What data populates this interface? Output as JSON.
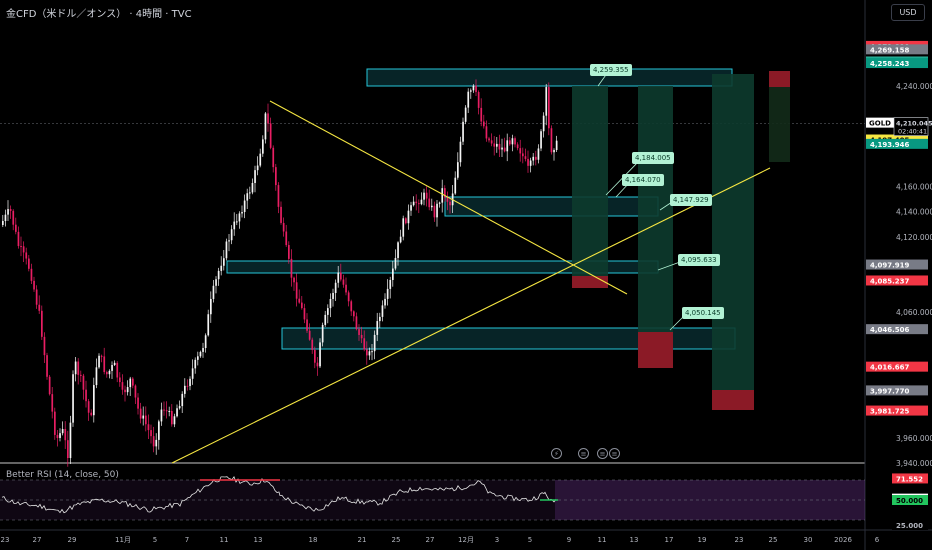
{
  "header": {
    "title": "金CFD（米ドル／オンス） · 4時間 · TVC",
    "currency_button": "USD"
  },
  "rsi": {
    "title": "Better RSI (14, close, 50)",
    "labels": [
      {
        "value": "71.552",
        "color": "#f23645",
        "text_color": "#ffffff",
        "y": 71.552
      },
      {
        "value": "51.351",
        "color": "#ffffff",
        "text_color": "#000000",
        "y": 51.351
      },
      {
        "value": "50.000",
        "color": "#22c55e",
        "text_color": "#000000",
        "y": 50.0
      },
      {
        "value": "25.000",
        "color": "#000000",
        "text_color": "#b2b5be",
        "y": 25.0
      }
    ],
    "levels": [
      70,
      50,
      30
    ]
  },
  "price_axis": {
    "ticks": [
      "4,240.000",
      "4,160.000",
      "4,140.000",
      "4,120.000",
      "4,060.000",
      "3,960.000",
      "3,940.000"
    ],
    "symbol_tag": "GOLD",
    "current_price": "4,210.045",
    "countdown": "02:40:41",
    "tags": [
      {
        "value": "4,271.890",
        "y": 4271.89,
        "color": "#f23645",
        "text_color": "#ffffff"
      },
      {
        "value": "4,269.158",
        "y": 4269.158,
        "color": "#787b86",
        "text_color": "#ffffff"
      },
      {
        "value": "4,259.531",
        "y": 4259.531,
        "color": "#787b86",
        "text_color": "#ffffff"
      },
      {
        "value": "4,259.469",
        "y": 4259.469,
        "color": "#22ab94",
        "text_color": "#ffffff"
      },
      {
        "value": "4,258.243",
        "y": 4258.243,
        "color": "#089981",
        "text_color": "#ffffff"
      },
      {
        "value": "4,197.405",
        "y": 4197.405,
        "color": "#f5e642",
        "text_color": "#000000"
      },
      {
        "value": "4,193.946",
        "y": 4193.946,
        "color": "#089981",
        "text_color": "#ffffff"
      },
      {
        "value": "4,097.919",
        "y": 4097.919,
        "color": "#787b86",
        "text_color": "#ffffff"
      },
      {
        "value": "4,085.237",
        "y": 4085.237,
        "color": "#f23645",
        "text_color": "#ffffff"
      },
      {
        "value": "4,046.506",
        "y": 4046.506,
        "color": "#787b86",
        "text_color": "#ffffff"
      },
      {
        "value": "4,016.667",
        "y": 4016.667,
        "color": "#f23645",
        "text_color": "#ffffff"
      },
      {
        "value": "3,997.770",
        "y": 3997.77,
        "color": "#787b86",
        "text_color": "#ffffff"
      },
      {
        "value": "3,981.725",
        "y": 3981.725,
        "color": "#f23645",
        "text_color": "#ffffff"
      }
    ]
  },
  "time_axis": {
    "labels": [
      "23",
      "27",
      "29",
      "11月",
      "5",
      "7",
      "11",
      "13",
      "18",
      "21",
      "25",
      "27",
      "12月",
      "3",
      "5",
      "9",
      "11",
      "13",
      "17",
      "19",
      "23",
      "25",
      "30",
      "2026",
      "6"
    ]
  },
  "annotations": [
    {
      "label": "4,259.355",
      "price": 4259.355
    },
    {
      "label": "4,184.005",
      "price": 4184.005
    },
    {
      "label": "4,164.070",
      "price": 4164.07
    },
    {
      "label": "4,147.929",
      "price": 4147.929
    },
    {
      "label": "4,095.633",
      "price": 4095.633
    },
    {
      "label": "4,050.145",
      "price": 4050.145
    }
  ],
  "colors": {
    "background": "#000000",
    "bull_candle": "#f5f5f5",
    "bear_candle": "#e91e63",
    "zone_border": "#26c6da",
    "trendline": "#f5e642",
    "profit_zone": "#0d3b2e",
    "loss_zone": "#8b1a26"
  }
}
